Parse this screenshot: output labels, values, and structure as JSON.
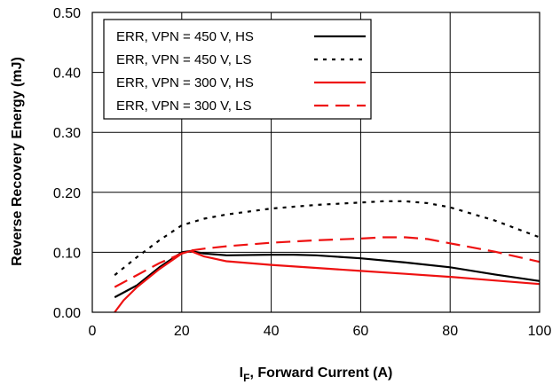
{
  "chart_data": {
    "type": "line",
    "xlabel_main": "I",
    "xlabel_sub": "F",
    "xlabel_rest": ", Forward Current (A)",
    "ylabel": "Reverse Recovery Energy (mJ)",
    "xlim": [
      0,
      100
    ],
    "ylim": [
      0,
      0.5
    ],
    "x_ticks": [
      "0",
      "20",
      "40",
      "60",
      "80",
      "100"
    ],
    "y_ticks": [
      "0.00",
      "0.10",
      "0.20",
      "0.30",
      "0.40",
      "0.50"
    ],
    "grid": true,
    "legend_position": "top-left",
    "series": [
      {
        "name": "ERR, VPN = 450 V, HS",
        "color": "#000000",
        "dash": "solid",
        "points": [
          [
            5,
            0.025
          ],
          [
            10,
            0.045
          ],
          [
            15,
            0.075
          ],
          [
            20,
            0.1
          ],
          [
            22,
            0.102
          ],
          [
            25,
            0.098
          ],
          [
            30,
            0.095
          ],
          [
            40,
            0.096
          ],
          [
            45,
            0.096
          ],
          [
            50,
            0.095
          ],
          [
            60,
            0.09
          ],
          [
            70,
            0.083
          ],
          [
            80,
            0.075
          ],
          [
            90,
            0.063
          ],
          [
            100,
            0.052
          ]
        ]
      },
      {
        "name": "ERR, VPN = 450 V, LS",
        "color": "#000000",
        "dash": "dotted",
        "points": [
          [
            5,
            0.062
          ],
          [
            10,
            0.092
          ],
          [
            15,
            0.12
          ],
          [
            20,
            0.145
          ],
          [
            25,
            0.156
          ],
          [
            30,
            0.163
          ],
          [
            40,
            0.173
          ],
          [
            50,
            0.179
          ],
          [
            60,
            0.183
          ],
          [
            65,
            0.185
          ],
          [
            70,
            0.185
          ],
          [
            75,
            0.182
          ],
          [
            80,
            0.175
          ],
          [
            90,
            0.153
          ],
          [
            100,
            0.125
          ]
        ]
      },
      {
        "name": "ERR, VPN = 300 V, HS",
        "color": "#ee1111",
        "dash": "solid",
        "points": [
          [
            5,
            0.0
          ],
          [
            7,
            0.02
          ],
          [
            10,
            0.042
          ],
          [
            15,
            0.072
          ],
          [
            20,
            0.098
          ],
          [
            22,
            0.102
          ],
          [
            25,
            0.093
          ],
          [
            30,
            0.085
          ],
          [
            40,
            0.079
          ],
          [
            50,
            0.074
          ],
          [
            60,
            0.069
          ],
          [
            70,
            0.064
          ],
          [
            80,
            0.059
          ],
          [
            90,
            0.053
          ],
          [
            100,
            0.047
          ]
        ]
      },
      {
        "name": "ERR, VPN = 300 V, LS",
        "color": "#ee1111",
        "dash": "dashed",
        "points": [
          [
            5,
            0.042
          ],
          [
            10,
            0.062
          ],
          [
            15,
            0.082
          ],
          [
            20,
            0.098
          ],
          [
            22,
            0.103
          ],
          [
            25,
            0.106
          ],
          [
            30,
            0.11
          ],
          [
            40,
            0.116
          ],
          [
            50,
            0.12
          ],
          [
            60,
            0.123
          ],
          [
            65,
            0.125
          ],
          [
            70,
            0.125
          ],
          [
            75,
            0.122
          ],
          [
            80,
            0.115
          ],
          [
            90,
            0.101
          ],
          [
            100,
            0.084
          ]
        ]
      }
    ]
  }
}
